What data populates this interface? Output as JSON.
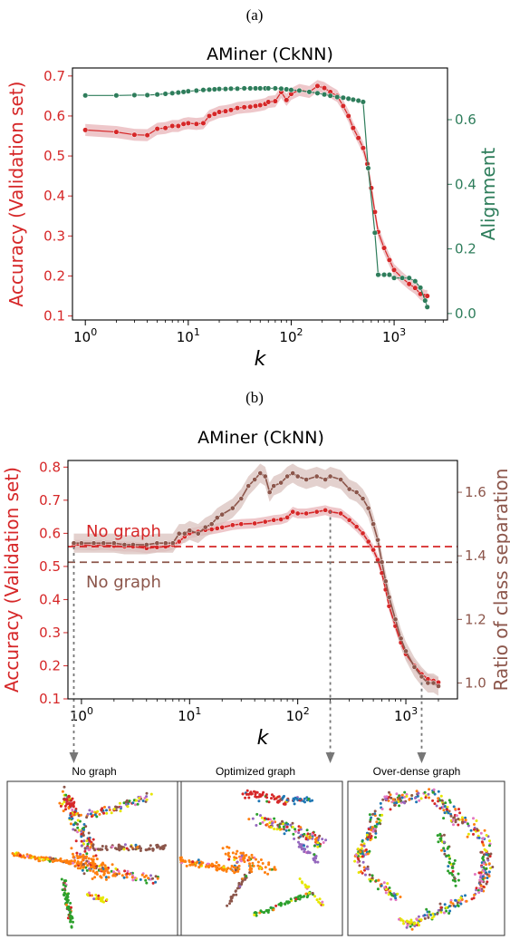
{
  "colors": {
    "accuracy": "#d62728",
    "alignment": "#2e7d5b",
    "separation": "#8c564b",
    "band_red": "#e8b4b8",
    "band_brown": "#d9c2bd"
  },
  "chart_data": [
    {
      "panel": "(a)",
      "type": "line",
      "title": "AMiner (CkNN)",
      "xlabel": "k",
      "xscale": "log",
      "xlim": [
        0.75,
        3300
      ],
      "x_ticks": [
        {
          "v": 1,
          "label": "10",
          "exp": "0"
        },
        {
          "v": 10,
          "label": "10",
          "exp": "1"
        },
        {
          "v": 100,
          "label": "10",
          "exp": "2"
        },
        {
          "v": 1000,
          "label": "10",
          "exp": "3"
        }
      ],
      "y_left": {
        "label": "Accuracy (Validation set)",
        "lim": [
          0.09,
          0.72
        ],
        "ticks": [
          "0.1",
          "0.2",
          "0.3",
          "0.4",
          "0.5",
          "0.6",
          "0.7"
        ]
      },
      "y_right": {
        "label": "Alignment",
        "lim": [
          -0.02,
          0.76
        ],
        "ticks": [
          "0.0",
          "0.2",
          "0.4",
          "0.6"
        ]
      },
      "series": [
        {
          "axis": "left",
          "key": "accuracy",
          "x": [
            1,
            2,
            3,
            4,
            5,
            6,
            7,
            8,
            9,
            10,
            12,
            14,
            16,
            18,
            20,
            23,
            26,
            30,
            35,
            40,
            45,
            50,
            56,
            60,
            70,
            80,
            90,
            100,
            120,
            150,
            180,
            210,
            240,
            280,
            320,
            360,
            400,
            450,
            500,
            550,
            600,
            650,
            700,
            800,
            900,
            1000,
            1200,
            1400,
            1600,
            1800,
            2000,
            2100
          ],
          "values": [
            0.565,
            0.56,
            0.553,
            0.552,
            0.568,
            0.57,
            0.575,
            0.575,
            0.58,
            0.582,
            0.58,
            0.582,
            0.6,
            0.605,
            0.61,
            0.612,
            0.615,
            0.62,
            0.622,
            0.623,
            0.625,
            0.627,
            0.63,
            0.635,
            0.637,
            0.66,
            0.64,
            0.655,
            0.665,
            0.66,
            0.675,
            0.67,
            0.66,
            0.65,
            0.625,
            0.6,
            0.57,
            0.545,
            0.52,
            0.48,
            0.42,
            0.36,
            0.31,
            0.27,
            0.24,
            0.215,
            0.195,
            0.18,
            0.17,
            0.155,
            0.15,
            0.15
          ],
          "band": 0.015
        },
        {
          "axis": "right",
          "key": "alignment",
          "x": [
            1,
            2,
            3,
            4,
            5,
            6,
            7,
            8,
            9,
            10,
            12,
            14,
            16,
            18,
            20,
            23,
            26,
            30,
            35,
            40,
            45,
            50,
            56,
            60,
            70,
            80,
            90,
            100,
            120,
            150,
            180,
            210,
            240,
            280,
            320,
            360,
            400,
            450,
            500,
            560,
            650,
            700,
            800,
            900,
            1000,
            1200,
            1400,
            1600,
            1800,
            2000,
            2100
          ],
          "values": [
            0.675,
            0.675,
            0.676,
            0.676,
            0.678,
            0.68,
            0.682,
            0.684,
            0.686,
            0.688,
            0.69,
            0.692,
            0.693,
            0.694,
            0.695,
            0.695,
            0.696,
            0.696,
            0.697,
            0.697,
            0.697,
            0.697,
            0.697,
            0.697,
            0.697,
            0.696,
            0.694,
            0.692,
            0.69,
            0.686,
            0.682,
            0.678,
            0.674,
            0.67,
            0.668,
            0.665,
            0.662,
            0.659,
            0.655,
            0.45,
            0.25,
            0.12,
            0.12,
            0.12,
            0.11,
            0.11,
            0.11,
            0.1,
            0.08,
            0.04,
            0.02
          ]
        }
      ]
    },
    {
      "panel": "(b)",
      "type": "line",
      "title": "AMiner (CkNN)",
      "xlabel": "k",
      "xscale": "log",
      "xlim": [
        0.75,
        3000
      ],
      "x_ticks": [
        {
          "v": 1,
          "label": "10",
          "exp": "0"
        },
        {
          "v": 10,
          "label": "10",
          "exp": "1"
        },
        {
          "v": 100,
          "label": "10",
          "exp": "2"
        },
        {
          "v": 1000,
          "label": "10",
          "exp": "3"
        }
      ],
      "y_left": {
        "label": "Accuracy (Validation set)",
        "lim": [
          0.1,
          0.82
        ],
        "ticks": [
          "0.1",
          "0.2",
          "0.3",
          "0.4",
          "0.5",
          "0.6",
          "0.7",
          "0.8"
        ]
      },
      "y_right": {
        "label": "Ratio of class separation",
        "lim": [
          0.95,
          1.7
        ],
        "ticks": [
          "1.0",
          "1.2",
          "1.4",
          "1.6"
        ]
      },
      "no_graph": {
        "accuracy": 0.56,
        "separation": 1.38,
        "label": "No graph"
      },
      "arrows_at_k": [
        0.85,
        200,
        1400
      ],
      "series": [
        {
          "axis": "left",
          "key": "accuracy",
          "x": [
            0.85,
            1,
            1.3,
            1.6,
            2,
            2.5,
            3,
            4,
            5,
            6,
            7,
            8,
            9,
            10,
            12,
            14,
            16,
            18,
            20,
            25,
            30,
            40,
            50,
            60,
            70,
            80,
            90,
            100,
            120,
            150,
            180,
            200,
            250,
            300,
            350,
            400,
            450,
            500,
            550,
            600,
            650,
            700,
            800,
            900,
            1000,
            1200,
            1400,
            1600,
            1800,
            2000
          ],
          "values": [
            0.565,
            0.565,
            0.563,
            0.565,
            0.562,
            0.56,
            0.56,
            0.555,
            0.558,
            0.56,
            0.565,
            0.575,
            0.59,
            0.6,
            0.605,
            0.61,
            0.612,
            0.615,
            0.618,
            0.625,
            0.628,
            0.63,
            0.635,
            0.64,
            0.642,
            0.648,
            0.665,
            0.66,
            0.66,
            0.665,
            0.67,
            0.665,
            0.66,
            0.64,
            0.62,
            0.6,
            0.575,
            0.55,
            0.52,
            0.48,
            0.43,
            0.38,
            0.32,
            0.27,
            0.235,
            0.2,
            0.175,
            0.16,
            0.155,
            0.15
          ],
          "band": 0.015
        },
        {
          "axis": "right",
          "key": "separation",
          "x": [
            0.85,
            1,
            1.3,
            1.6,
            2,
            2.5,
            3,
            4,
            5,
            6,
            7,
            8,
            9,
            10,
            12,
            14,
            16,
            18,
            20,
            25,
            30,
            35,
            40,
            45,
            50,
            55,
            60,
            70,
            80,
            90,
            100,
            120,
            150,
            180,
            200,
            250,
            300,
            350,
            400,
            450,
            500,
            550,
            600,
            650,
            700,
            800,
            900,
            1000,
            1200,
            1400,
            1600,
            1800,
            2000
          ],
          "values": [
            1.44,
            1.44,
            1.44,
            1.44,
            1.44,
            1.435,
            1.435,
            1.435,
            1.44,
            1.44,
            1.44,
            1.47,
            1.47,
            1.48,
            1.47,
            1.49,
            1.5,
            1.52,
            1.53,
            1.55,
            1.58,
            1.62,
            1.64,
            1.66,
            1.65,
            1.6,
            1.62,
            1.63,
            1.65,
            1.66,
            1.65,
            1.64,
            1.65,
            1.64,
            1.65,
            1.64,
            1.61,
            1.6,
            1.58,
            1.55,
            1.5,
            1.45,
            1.38,
            1.32,
            1.27,
            1.2,
            1.14,
            1.1,
            1.05,
            1.02,
            1.0,
            1.0,
            0.99
          ],
          "band": 0.03
        }
      ]
    }
  ],
  "fig_a": {
    "panel_label": "(a)",
    "title": "AMiner (CkNN)"
  },
  "fig_b": {
    "panel_label": "(b)",
    "title": "AMiner (CkNN)"
  },
  "thumbnails": [
    {
      "title": "No graph"
    },
    {
      "title": "Optimized graph"
    },
    {
      "title": "Over-dense graph"
    }
  ]
}
